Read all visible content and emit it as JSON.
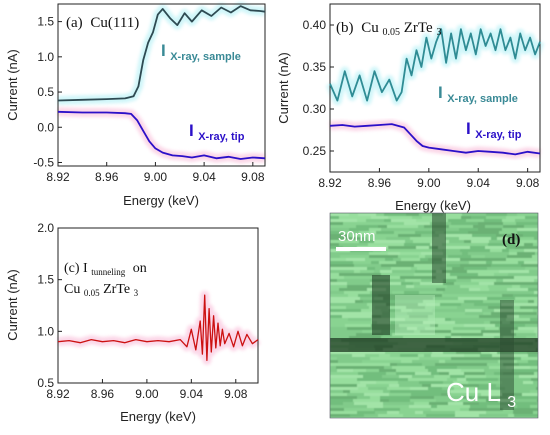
{
  "panels": {
    "a": {
      "label_letter": "(a)",
      "label_text": "Cu(111)",
      "series": {
        "sample": {
          "label_main": "I",
          "label_sub": "X-ray, sample"
        },
        "tip": {
          "label_main": "I",
          "label_sub": "X-ray, tip"
        }
      }
    },
    "b": {
      "label_letter": "(b)",
      "label_text": "Cu",
      "label_sub": "0.05",
      "label_tail": "ZrTe",
      "label_tail_sub": "3",
      "series": {
        "sample": {
          "label_main": "I",
          "label_sub": "X-ray, sample"
        },
        "tip": {
          "label_main": "I",
          "label_sub": "X-ray, tip"
        }
      }
    },
    "c": {
      "label_line1_letter": "(c) I",
      "label_line1_sub": "tunneling",
      "label_line1_tail": "on",
      "label_line2": "Cu",
      "label_line2_sub": "0.05",
      "label_line2_tail": "ZrTe",
      "label_line2_tail_sub": "3"
    },
    "d": {
      "label_letter": "(d)",
      "scale_bar": "30nm",
      "map_label": "Cu L",
      "map_label_sub": "3"
    }
  },
  "colors": {
    "sample_a": "#2e4a52",
    "sample_b": "#2f8c94",
    "tip": "#2b10c8",
    "tunneling": "#cc1111",
    "sample_label": "#3a8a96",
    "tip_label": "#2b10c8",
    "halo_cyan": "#c8f4f8",
    "halo_pink": "#fbd0e4"
  },
  "chart_data": [
    {
      "panel": "a",
      "type": "line",
      "xlabel": "Energy (keV)",
      "ylabel": "Current (nA)",
      "xlim": [
        8.92,
        9.09
      ],
      "ylim": [
        -0.55,
        1.75
      ],
      "xticks": [
        "8.92",
        "8.96",
        "9.00",
        "9.04",
        "9.08"
      ],
      "xtick_values": [
        8.92,
        8.96,
        9.0,
        9.04,
        9.08
      ],
      "yticks": [
        "-0.5",
        "0.0",
        "0.5",
        "1.0",
        "1.5"
      ],
      "ytick_values": [
        -0.5,
        0.0,
        0.5,
        1.0,
        1.5
      ],
      "series": [
        {
          "key": "sample",
          "x": [
            8.92,
            8.94,
            8.96,
            8.975,
            8.982,
            8.986,
            8.99,
            8.994,
            8.998,
            9.002,
            9.006,
            9.012,
            9.018,
            9.024,
            9.03,
            9.038,
            9.046,
            9.054,
            9.062,
            9.07,
            9.078,
            9.086,
            9.09
          ],
          "y": [
            0.38,
            0.39,
            0.4,
            0.41,
            0.44,
            0.58,
            0.95,
            1.2,
            1.35,
            1.6,
            1.68,
            1.55,
            1.45,
            1.62,
            1.5,
            1.66,
            1.58,
            1.7,
            1.63,
            1.72,
            1.66,
            1.65,
            1.64
          ]
        },
        {
          "key": "tip",
          "x": [
            8.92,
            8.94,
            8.96,
            8.975,
            8.98,
            8.985,
            8.99,
            8.995,
            9.0,
            9.006,
            9.014,
            9.022,
            9.03,
            9.04,
            9.05,
            9.06,
            9.07,
            9.08,
            9.09
          ],
          "y": [
            0.22,
            0.21,
            0.21,
            0.2,
            0.19,
            0.1,
            -0.05,
            -0.2,
            -0.3,
            -0.36,
            -0.4,
            -0.41,
            -0.43,
            -0.4,
            -0.44,
            -0.42,
            -0.45,
            -0.43,
            -0.44
          ]
        }
      ]
    },
    {
      "panel": "b",
      "type": "line",
      "xlabel": "Energy (keV)",
      "ylabel": "Current (nA)",
      "xlim": [
        8.92,
        9.09
      ],
      "ylim": [
        0.225,
        0.425
      ],
      "xticks": [
        "8.92",
        "8.96",
        "9.00",
        "9.04",
        "9.08"
      ],
      "xtick_values": [
        8.92,
        8.96,
        9.0,
        9.04,
        9.08
      ],
      "yticks": [
        "0.25",
        "0.30",
        "0.35",
        "0.40"
      ],
      "ytick_values": [
        0.25,
        0.3,
        0.35,
        0.4
      ],
      "series": [
        {
          "key": "sample",
          "x": [
            8.92,
            8.926,
            8.932,
            8.938,
            8.944,
            8.95,
            8.956,
            8.962,
            8.968,
            8.974,
            8.978,
            8.982,
            8.986,
            8.99,
            8.994,
            8.998,
            9.002,
            9.006,
            9.01,
            9.014,
            9.018,
            9.022,
            9.026,
            9.03,
            9.034,
            9.038,
            9.042,
            9.046,
            9.05,
            9.054,
            9.058,
            9.062,
            9.066,
            9.07,
            9.074,
            9.078,
            9.082,
            9.086,
            9.09
          ],
          "y": [
            0.33,
            0.31,
            0.345,
            0.315,
            0.34,
            0.31,
            0.345,
            0.32,
            0.335,
            0.31,
            0.32,
            0.36,
            0.34,
            0.37,
            0.35,
            0.385,
            0.36,
            0.38,
            0.395,
            0.355,
            0.39,
            0.36,
            0.395,
            0.37,
            0.39,
            0.365,
            0.395,
            0.375,
            0.39,
            0.37,
            0.395,
            0.37,
            0.385,
            0.36,
            0.39,
            0.37,
            0.385,
            0.365,
            0.38
          ]
        },
        {
          "key": "tip",
          "x": [
            8.92,
            8.93,
            8.94,
            8.95,
            8.96,
            8.97,
            8.98,
            8.985,
            8.99,
            8.995,
            9.0,
            9.01,
            9.02,
            9.03,
            9.04,
            9.05,
            9.06,
            9.07,
            9.08,
            9.09
          ],
          "y": [
            0.28,
            0.281,
            0.279,
            0.28,
            0.281,
            0.282,
            0.278,
            0.27,
            0.262,
            0.256,
            0.254,
            0.252,
            0.25,
            0.248,
            0.25,
            0.249,
            0.248,
            0.246,
            0.249,
            0.247
          ]
        }
      ]
    },
    {
      "panel": "c",
      "type": "line",
      "xlabel": "Energy (keV)",
      "ylabel": "Current (nA)",
      "xlim": [
        8.92,
        9.1
      ],
      "ylim": [
        0.5,
        2.0
      ],
      "xticks": [
        "8.92",
        "8.96",
        "9.00",
        "9.04",
        "9.08"
      ],
      "xtick_values": [
        8.92,
        8.96,
        9.0,
        9.04,
        9.08
      ],
      "yticks": [
        "0.5",
        "1.0",
        "1.5",
        "2.0"
      ],
      "ytick_values": [
        0.5,
        1.0,
        1.5,
        2.0
      ],
      "series": [
        {
          "key": "tunneling",
          "x": [
            8.92,
            8.93,
            8.94,
            8.95,
            8.96,
            8.97,
            8.98,
            8.99,
            9.0,
            9.01,
            9.02,
            9.03,
            9.036,
            9.04,
            9.044,
            9.048,
            9.05,
            9.052,
            9.054,
            9.056,
            9.058,
            9.06,
            9.062,
            9.064,
            9.066,
            9.068,
            9.07,
            9.074,
            9.078,
            9.082,
            9.086,
            9.09,
            9.095,
            9.1
          ],
          "y": [
            0.9,
            0.91,
            0.89,
            0.92,
            0.9,
            0.91,
            0.89,
            0.92,
            0.9,
            0.91,
            0.9,
            0.92,
            0.85,
            1.02,
            0.82,
            1.1,
            0.78,
            1.35,
            0.72,
            1.22,
            0.8,
            1.15,
            0.84,
            1.08,
            0.86,
            1.02,
            0.88,
            0.98,
            0.85,
            1.0,
            0.86,
            0.97,
            0.88,
            0.92
          ]
        }
      ]
    }
  ]
}
